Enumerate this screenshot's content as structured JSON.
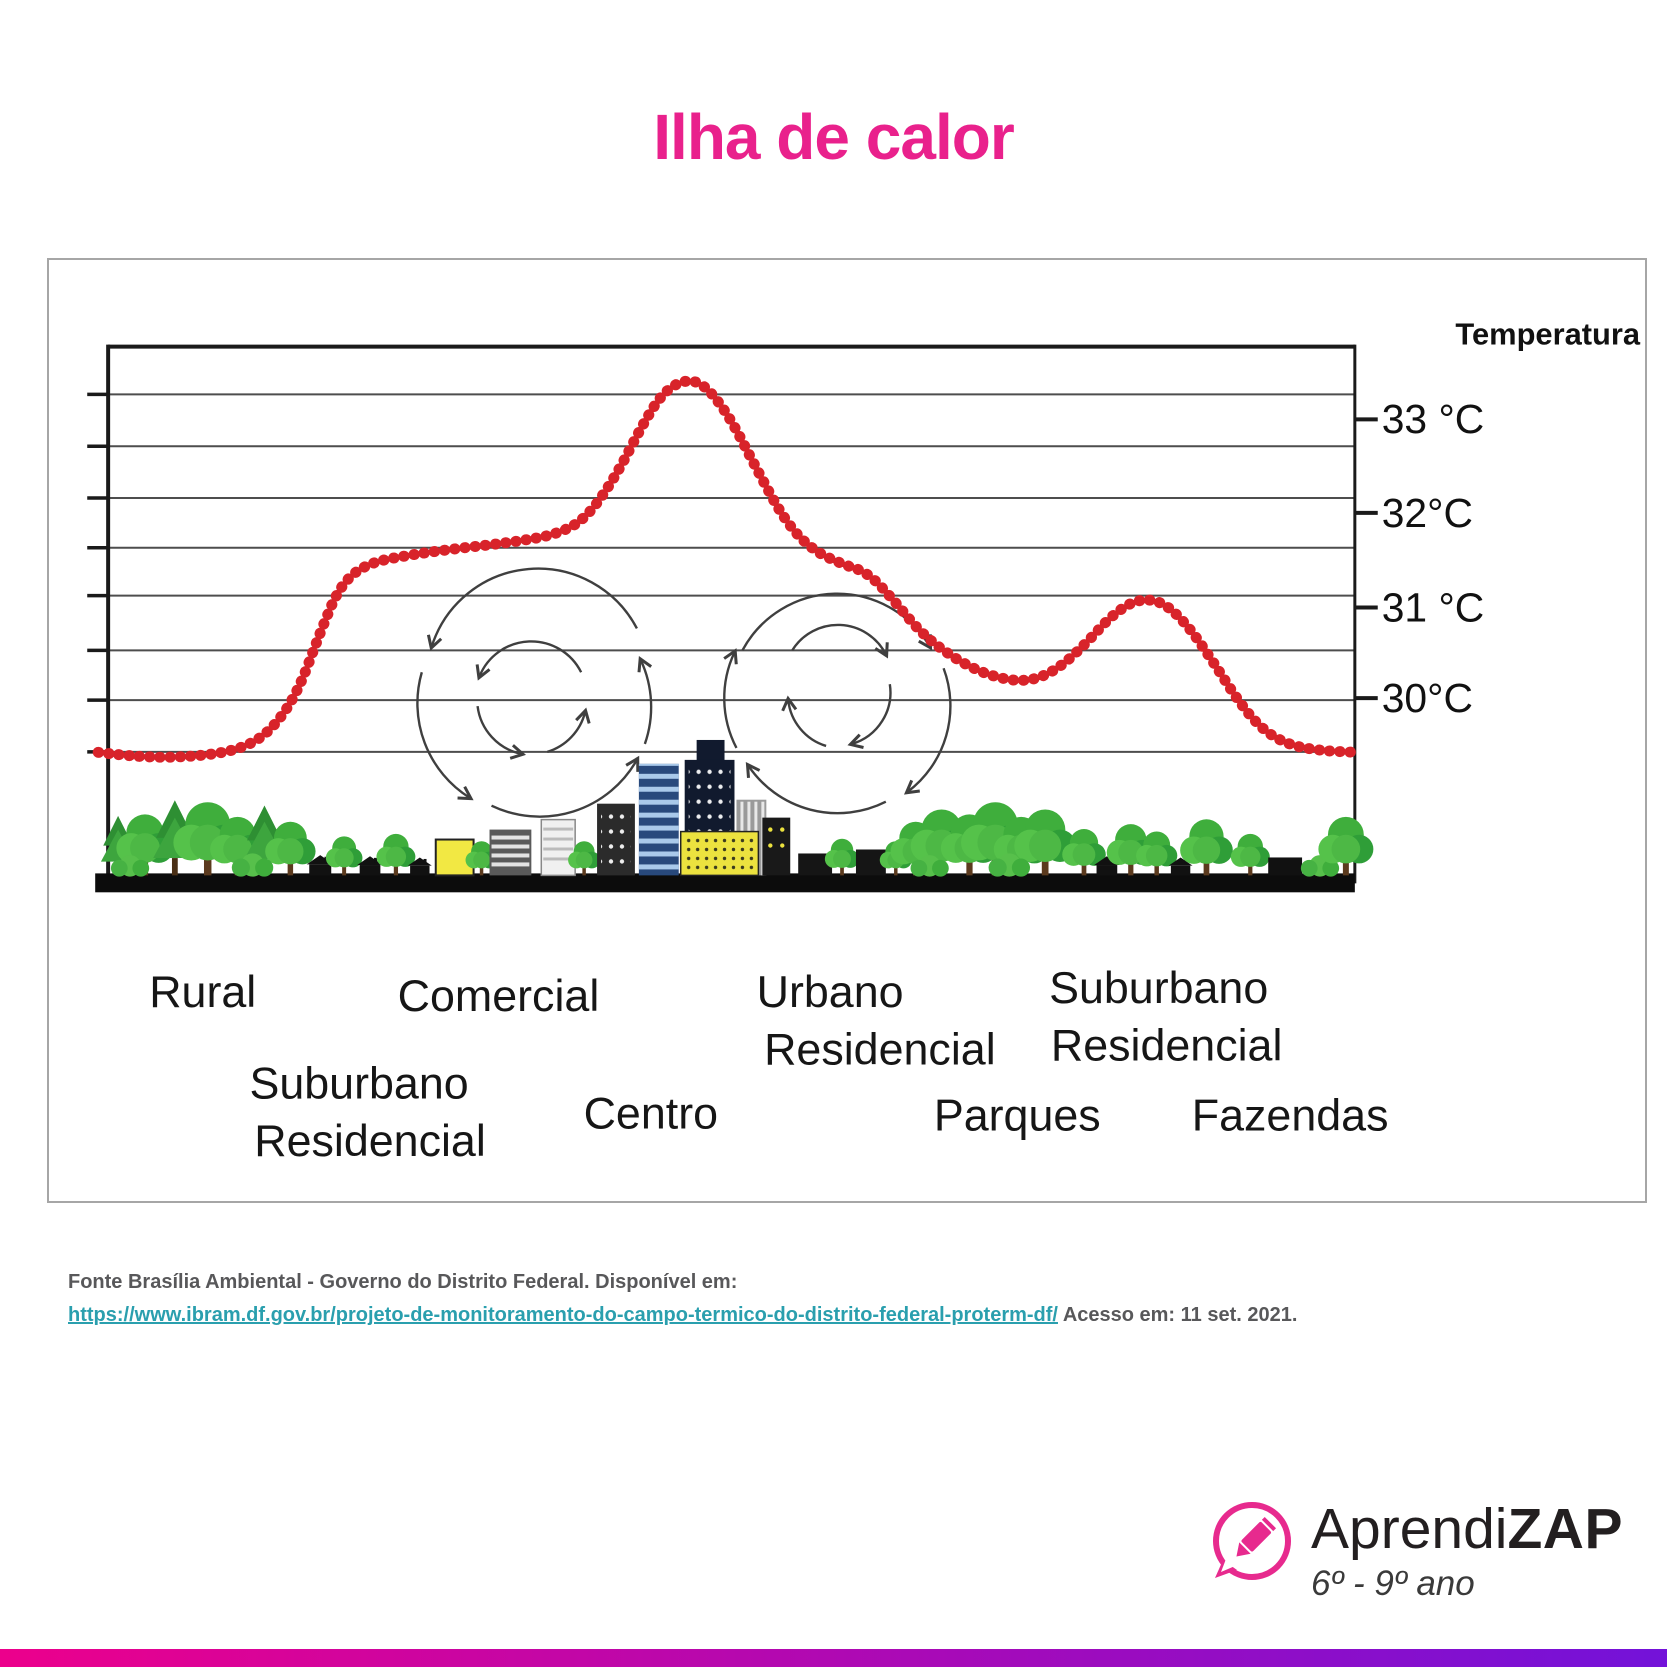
{
  "title": "Ilha de calor",
  "panel": {
    "axis_title": "Temperatura",
    "yticks": [
      "33 °C",
      "32°C",
      "31 °C",
      "30°C"
    ],
    "zones": {
      "rural": "Rural",
      "comercial": "Comercial",
      "urbano_1": "Urbano",
      "urbano_2": "Residencial",
      "suburbano_right_1": "Suburbano",
      "suburbano_right_2": "Residencial",
      "suburbano_left_1": "Suburbano",
      "suburbano_left_2": "Residencial",
      "centro": "Centro",
      "parques": "Parques",
      "fazendas": "Fazendas"
    }
  },
  "chart_data": {
    "type": "line",
    "title": "Ilha de calor",
    "ylabel": "Temperatura",
    "ytick_labels": [
      "33 °C",
      "32°C",
      "31 °C",
      "30°C"
    ],
    "yticks_c": [
      33,
      32,
      31,
      30
    ],
    "ylim": [
      29.3,
      33.8
    ],
    "grid": true,
    "legend": "none",
    "zones_x_order": [
      "Rural",
      "Suburbano Residencial",
      "Comercial",
      "Centro",
      "Urbano Residencial",
      "Parques",
      "Suburbano Residencial",
      "Fazendas"
    ],
    "peak_temp_c": 33.4,
    "rural_baseline_temp_c": 29.5,
    "series": [
      {
        "name": "Temperatura (°C)",
        "points": [
          [
            95,
            29.48
          ],
          [
            140,
            29.42
          ],
          [
            200,
            29.44
          ],
          [
            240,
            29.52
          ],
          [
            268,
            29.7
          ],
          [
            295,
            30.1
          ],
          [
            318,
            30.75
          ],
          [
            338,
            31.25
          ],
          [
            365,
            31.48
          ],
          [
            410,
            31.57
          ],
          [
            460,
            31.64
          ],
          [
            510,
            31.7
          ],
          [
            555,
            31.78
          ],
          [
            585,
            31.95
          ],
          [
            615,
            32.4
          ],
          [
            642,
            32.95
          ],
          [
            662,
            33.28
          ],
          [
            683,
            33.42
          ],
          [
            703,
            33.38
          ],
          [
            728,
            33.05
          ],
          [
            755,
            32.5
          ],
          [
            785,
            31.92
          ],
          [
            812,
            31.62
          ],
          [
            842,
            31.47
          ],
          [
            868,
            31.38
          ],
          [
            893,
            31.1
          ],
          [
            922,
            30.73
          ],
          [
            958,
            30.45
          ],
          [
            992,
            30.28
          ],
          [
            1028,
            30.22
          ],
          [
            1058,
            30.35
          ],
          [
            1088,
            30.64
          ],
          [
            1112,
            30.92
          ],
          [
            1138,
            31.1
          ],
          [
            1163,
            31.08
          ],
          [
            1188,
            30.84
          ],
          [
            1214,
            30.45
          ],
          [
            1240,
            30.02
          ],
          [
            1264,
            29.72
          ],
          [
            1290,
            29.56
          ],
          [
            1320,
            29.5
          ],
          [
            1357,
            29.48
          ]
        ]
      }
    ]
  },
  "source": {
    "line1": "Fonte Brasília Ambiental - Governo do Distrito Federal.  Disponível  em:",
    "link_text": "https://www.ibram.df.gov.br/projeto-de-monitoramento-do-campo-termico-do-distrito-federal-proterm-df/",
    "line2_suffix": "Acesso em: 11 set. 2021."
  },
  "logo": {
    "brand_regular": "Aprendi",
    "brand_bold": "ZAP",
    "grade_range": "6º - 9º ano"
  },
  "colors": {
    "title_pink": "#e9218c",
    "curve_red": "#d8232a",
    "link_teal": "#2a9fae",
    "footer_gray": "#58585a",
    "logo_pink": "#e72a8e",
    "bar_gradient_left": "#ec008c",
    "bar_gradient_right": "#7312d9"
  }
}
